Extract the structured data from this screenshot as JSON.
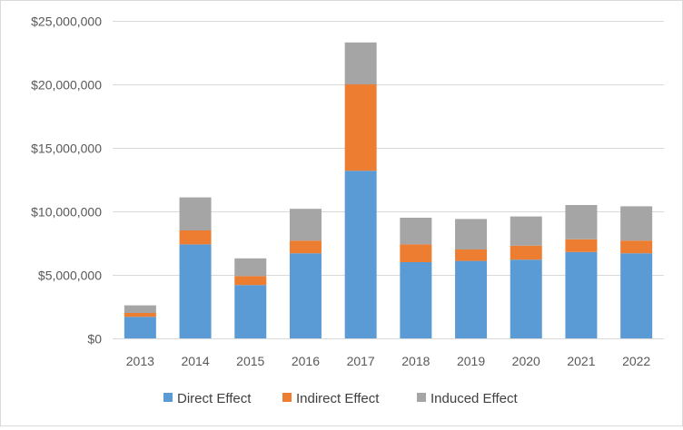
{
  "chart_data": {
    "type": "bar",
    "stacked": true,
    "categories": [
      "2013",
      "2014",
      "2015",
      "2016",
      "2017",
      "2018",
      "2019",
      "2020",
      "2021",
      "2022"
    ],
    "series": [
      {
        "name": "Direct Effect",
        "color": "#5b9bd5",
        "values": [
          1700000,
          7400000,
          4200000,
          6700000,
          13200000,
          6000000,
          6100000,
          6200000,
          6800000,
          6700000
        ]
      },
      {
        "name": "Indirect Effect",
        "color": "#ed7d31",
        "values": [
          300000,
          1100000,
          700000,
          1000000,
          6800000,
          1400000,
          900000,
          1100000,
          1000000,
          1000000
        ]
      },
      {
        "name": "Induced Effect",
        "color": "#a5a5a5",
        "values": [
          600000,
          2600000,
          1400000,
          2500000,
          3300000,
          2100000,
          2400000,
          2300000,
          2700000,
          2700000
        ]
      }
    ],
    "ylim": [
      0,
      25000000
    ],
    "yticks": [
      0,
      5000000,
      10000000,
      15000000,
      20000000,
      25000000
    ],
    "ytick_labels": [
      "$0",
      "$5,000,000",
      "$10,000,000",
      "$15,000,000",
      "$20,000,000",
      "$25,000,000"
    ],
    "grid": true,
    "legend_position": "bottom",
    "title": "",
    "xlabel": "",
    "ylabel": ""
  }
}
